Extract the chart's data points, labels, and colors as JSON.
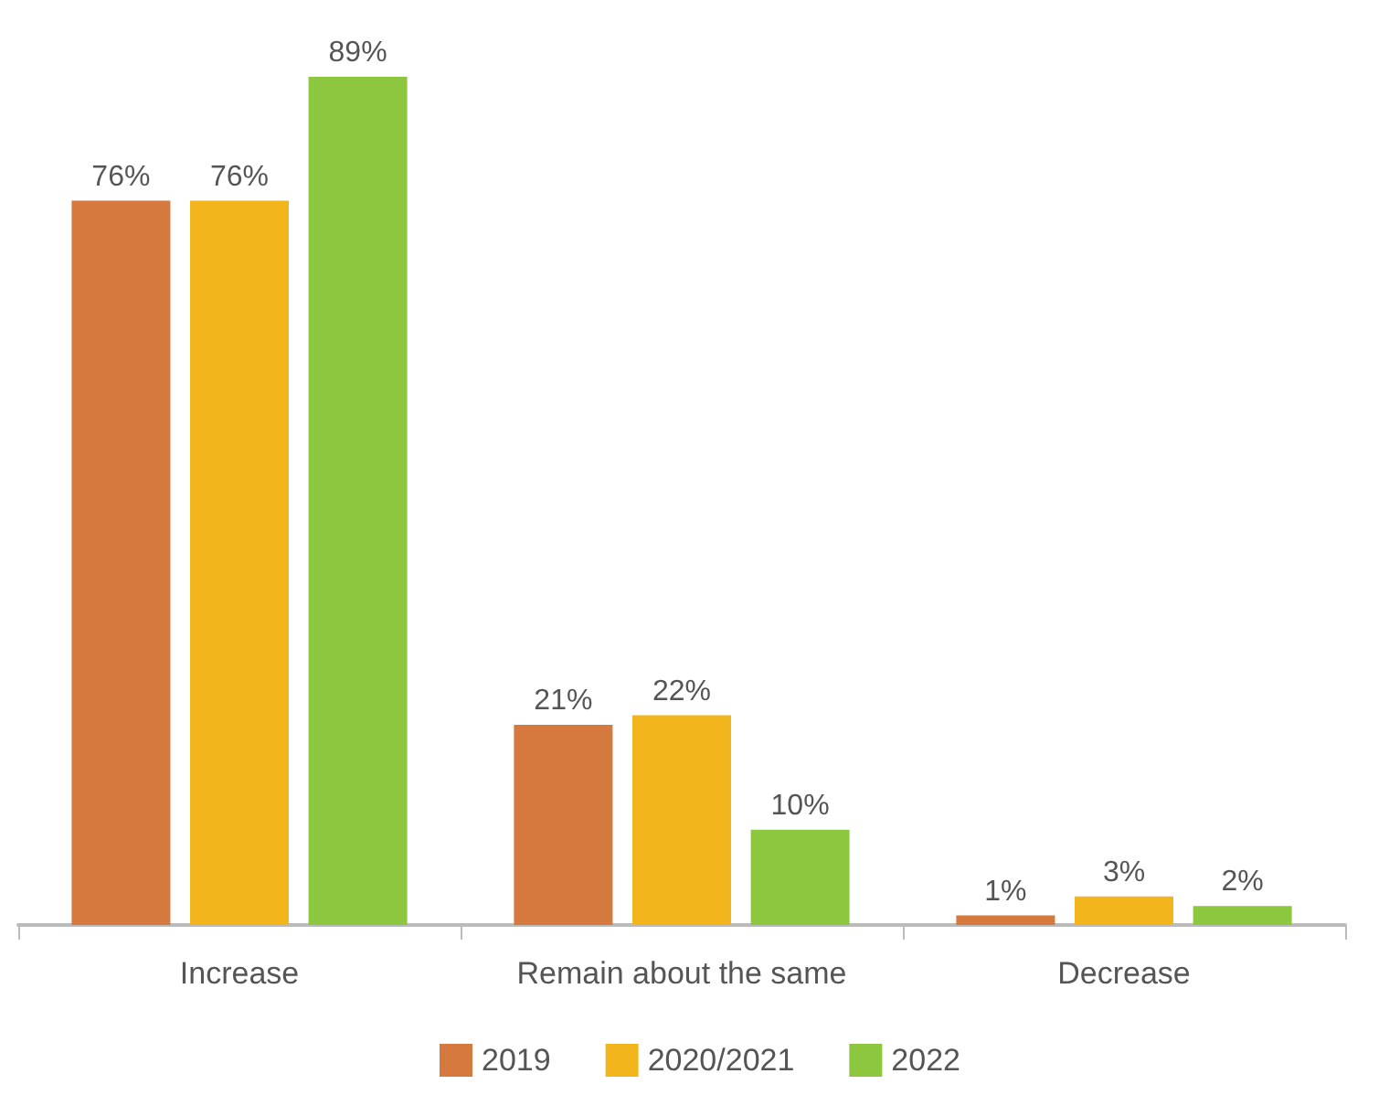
{
  "chart_data": {
    "type": "bar",
    "categories": [
      "Increase",
      "Remain about the same",
      "Decrease"
    ],
    "series": [
      {
        "name": "2019",
        "color": "#d5793e",
        "values": [
          76,
          21,
          1
        ],
        "value_labels": [
          "76%",
          "21%",
          "1%"
        ]
      },
      {
        "name": "2020/2021",
        "color": "#f2b51c",
        "values": [
          76,
          22,
          3
        ],
        "value_labels": [
          "76%",
          "22%",
          "3%"
        ]
      },
      {
        "name": "2022",
        "color": "#8dc63f",
        "values": [
          89,
          10,
          2
        ],
        "value_labels": [
          "89%",
          "10%",
          "2%"
        ]
      }
    ],
    "legend": "bottom",
    "grid": false
  }
}
